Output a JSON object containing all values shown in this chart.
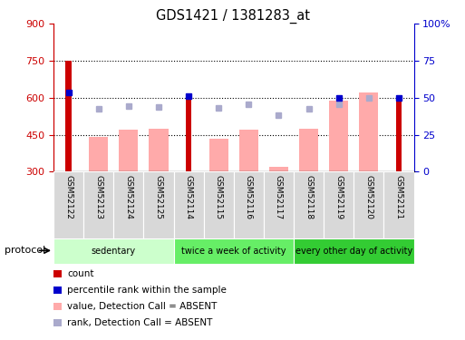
{
  "title": "GDS1421 / 1381283_at",
  "categories": [
    "GSM52122",
    "GSM52123",
    "GSM52124",
    "GSM52125",
    "GSM52114",
    "GSM52115",
    "GSM52116",
    "GSM52117",
    "GSM52118",
    "GSM52119",
    "GSM52120",
    "GSM52121"
  ],
  "count_values": [
    750,
    null,
    null,
    null,
    610,
    null,
    null,
    null,
    null,
    null,
    null,
    610
  ],
  "count_color": "#cc0000",
  "percentile_values": [
    620,
    null,
    null,
    null,
    605,
    null,
    null,
    null,
    null,
    600,
    null,
    598
  ],
  "percentile_color": "#0000cc",
  "absent_value": [
    null,
    440,
    470,
    475,
    null,
    435,
    470,
    320,
    475,
    590,
    620,
    null
  ],
  "absent_value_color": "#ffaaaa",
  "absent_rank": [
    null,
    555,
    565,
    563,
    null,
    560,
    572,
    530,
    555,
    575,
    600,
    null
  ],
  "absent_rank_color": "#aaaacc",
  "ylim_left": [
    300,
    900
  ],
  "ylim_right": [
    0,
    100
  ],
  "yticks_left": [
    300,
    450,
    600,
    750,
    900
  ],
  "yticks_right": [
    0,
    25,
    50,
    75,
    100
  ],
  "ytick_labels_left": [
    "300",
    "450",
    "600",
    "750",
    "900"
  ],
  "ytick_labels_right": [
    "0",
    "25",
    "50",
    "75",
    "100%"
  ],
  "left_axis_color": "#cc0000",
  "right_axis_color": "#0000cc",
  "protocol_groups": [
    {
      "label": "sedentary",
      "start": 0,
      "end": 4,
      "color": "#ccffcc"
    },
    {
      "label": "twice a week of activity",
      "start": 4,
      "end": 8,
      "color": "#66ee66"
    },
    {
      "label": "every other day of activity",
      "start": 8,
      "end": 12,
      "color": "#33cc33"
    }
  ],
  "protocol_label": "protocol",
  "legend_items": [
    {
      "color": "#cc0000",
      "label": "count"
    },
    {
      "color": "#0000cc",
      "label": "percentile rank within the sample"
    },
    {
      "color": "#ffaaaa",
      "label": "value, Detection Call = ABSENT"
    },
    {
      "color": "#aaaacc",
      "label": "rank, Detection Call = ABSENT"
    }
  ],
  "bar_width": 0.4,
  "background_color": "#ffffff",
  "plot_bg_color": "#ffffff",
  "xtick_bg_color": "#d8d8d8",
  "gridline_yticks": [
    450,
    600,
    750
  ]
}
